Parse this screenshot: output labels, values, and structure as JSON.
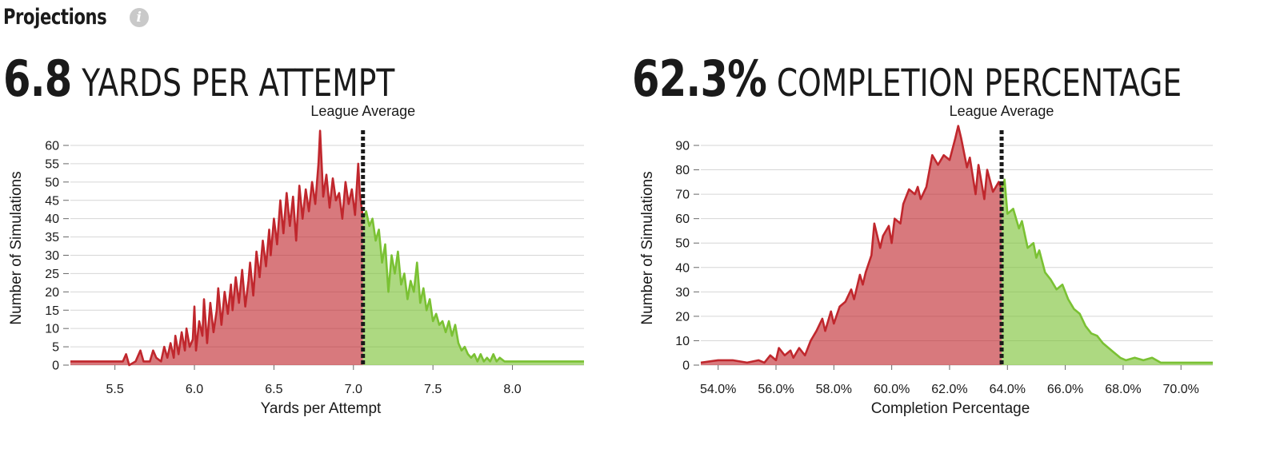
{
  "header": {
    "title": "Projections",
    "info_icon": "info-icon"
  },
  "chart_data": [
    {
      "type": "area",
      "headline_value": "6.8",
      "headline_label": "YARDS PER ATTEMPT",
      "xlabel": "Yards per Attempt",
      "ylabel": "Number of Simulations",
      "annotation": "League Average",
      "league_average": 7.06,
      "xlim": [
        5.22,
        8.45
      ],
      "ylim": [
        0,
        60
      ],
      "x_ticks": [
        5.5,
        6.0,
        6.5,
        7.0,
        7.5,
        8.0
      ],
      "x_tick_labels": [
        "5.5",
        "6.0",
        "6.5",
        "7.0",
        "7.5",
        "8.0"
      ],
      "y_ticks": [
        0,
        5,
        10,
        15,
        20,
        25,
        30,
        35,
        40,
        45,
        50,
        55,
        60
      ],
      "y_tick_labels": [
        "0",
        "5",
        "10",
        "15",
        "20",
        "25",
        "30",
        "35",
        "40",
        "45",
        "50",
        "55",
        "60"
      ],
      "below_color": "#c0272d",
      "above_color": "#7ac133",
      "points": [
        [
          5.22,
          1
        ],
        [
          5.3,
          1
        ],
        [
          5.4,
          1
        ],
        [
          5.5,
          1
        ],
        [
          5.55,
          1
        ],
        [
          5.57,
          3
        ],
        [
          5.59,
          0
        ],
        [
          5.63,
          1
        ],
        [
          5.66,
          4
        ],
        [
          5.68,
          1
        ],
        [
          5.72,
          1
        ],
        [
          5.74,
          4
        ],
        [
          5.76,
          2
        ],
        [
          5.79,
          1
        ],
        [
          5.81,
          5
        ],
        [
          5.83,
          2
        ],
        [
          5.85,
          6
        ],
        [
          5.87,
          2
        ],
        [
          5.88,
          8
        ],
        [
          5.9,
          3
        ],
        [
          5.92,
          9
        ],
        [
          5.94,
          4
        ],
        [
          5.95,
          10
        ],
        [
          5.97,
          5
        ],
        [
          5.99,
          7
        ],
        [
          6.0,
          16
        ],
        [
          6.01,
          4
        ],
        [
          6.03,
          12
        ],
        [
          6.05,
          8
        ],
        [
          6.06,
          18
        ],
        [
          6.08,
          6
        ],
        [
          6.1,
          17
        ],
        [
          6.12,
          9
        ],
        [
          6.14,
          15
        ],
        [
          6.15,
          21
        ],
        [
          6.17,
          11
        ],
        [
          6.19,
          20
        ],
        [
          6.21,
          14
        ],
        [
          6.23,
          22
        ],
        [
          6.24,
          15
        ],
        [
          6.26,
          24
        ],
        [
          6.28,
          17
        ],
        [
          6.3,
          26
        ],
        [
          6.32,
          16
        ],
        [
          6.34,
          23
        ],
        [
          6.35,
          28
        ],
        [
          6.37,
          19
        ],
        [
          6.39,
          31
        ],
        [
          6.41,
          24
        ],
        [
          6.43,
          34
        ],
        [
          6.45,
          27
        ],
        [
          6.47,
          37
        ],
        [
          6.48,
          30
        ],
        [
          6.5,
          40
        ],
        [
          6.52,
          33
        ],
        [
          6.54,
          45
        ],
        [
          6.56,
          36
        ],
        [
          6.58,
          47
        ],
        [
          6.6,
          38
        ],
        [
          6.62,
          46
        ],
        [
          6.64,
          34
        ],
        [
          6.66,
          49
        ],
        [
          6.68,
          40
        ],
        [
          6.7,
          48
        ],
        [
          6.72,
          42
        ],
        [
          6.74,
          50
        ],
        [
          6.76,
          44
        ],
        [
          6.78,
          55
        ],
        [
          6.79,
          64
        ],
        [
          6.81,
          46
        ],
        [
          6.83,
          52
        ],
        [
          6.85,
          43
        ],
        [
          6.87,
          51
        ],
        [
          6.89,
          45
        ],
        [
          6.91,
          47
        ],
        [
          6.93,
          40
        ],
        [
          6.95,
          50
        ],
        [
          6.97,
          44
        ],
        [
          6.99,
          48
        ],
        [
          7.01,
          41
        ],
        [
          7.03,
          55
        ],
        [
          7.04,
          47
        ],
        [
          7.06,
          40
        ],
        [
          7.08,
          42
        ],
        [
          7.1,
          38
        ],
        [
          7.12,
          40
        ],
        [
          7.14,
          34
        ],
        [
          7.16,
          37
        ],
        [
          7.18,
          28
        ],
        [
          7.2,
          33
        ],
        [
          7.22,
          20
        ],
        [
          7.24,
          30
        ],
        [
          7.26,
          25
        ],
        [
          7.28,
          31
        ],
        [
          7.3,
          22
        ],
        [
          7.32,
          25
        ],
        [
          7.34,
          18
        ],
        [
          7.36,
          23
        ],
        [
          7.38,
          20
        ],
        [
          7.4,
          28
        ],
        [
          7.42,
          17
        ],
        [
          7.44,
          21
        ],
        [
          7.46,
          15
        ],
        [
          7.48,
          18
        ],
        [
          7.5,
          12
        ],
        [
          7.52,
          14
        ],
        [
          7.54,
          11
        ],
        [
          7.56,
          12
        ],
        [
          7.58,
          9
        ],
        [
          7.6,
          12
        ],
        [
          7.62,
          8
        ],
        [
          7.64,
          11
        ],
        [
          7.66,
          6
        ],
        [
          7.68,
          4
        ],
        [
          7.7,
          5
        ],
        [
          7.72,
          3
        ],
        [
          7.74,
          2
        ],
        [
          7.76,
          3
        ],
        [
          7.78,
          1
        ],
        [
          7.8,
          3
        ],
        [
          7.82,
          1
        ],
        [
          7.84,
          2
        ],
        [
          7.86,
          1
        ],
        [
          7.88,
          3
        ],
        [
          7.9,
          1
        ],
        [
          7.92,
          2
        ],
        [
          7.95,
          1
        ],
        [
          8.0,
          1
        ],
        [
          8.1,
          1
        ],
        [
          8.2,
          1
        ],
        [
          8.3,
          1
        ],
        [
          8.45,
          1
        ]
      ]
    },
    {
      "type": "area",
      "headline_value": "62.3%",
      "headline_label": "COMPLETION PERCENTAGE",
      "xlabel": "Completion Percentage",
      "ylabel": "Number of Simulations",
      "annotation": "League Average",
      "league_average": 63.8,
      "xlim": [
        53.4,
        71.1
      ],
      "ylim": [
        0,
        90
      ],
      "x_ticks": [
        54,
        56,
        58,
        60,
        62,
        64,
        66,
        68,
        70
      ],
      "x_tick_labels": [
        "54.0%",
        "56.0%",
        "58.0%",
        "60.0%",
        "62.0%",
        "64.0%",
        "66.0%",
        "68.0%",
        "70.0%"
      ],
      "y_ticks": [
        0,
        10,
        20,
        30,
        40,
        50,
        60,
        70,
        80,
        90
      ],
      "y_tick_labels": [
        "0",
        "10",
        "20",
        "30",
        "40",
        "50",
        "60",
        "70",
        "80",
        "90"
      ],
      "below_color": "#c0272d",
      "above_color": "#7ac133",
      "points": [
        [
          53.4,
          1
        ],
        [
          54.0,
          2
        ],
        [
          54.5,
          2
        ],
        [
          55.0,
          1
        ],
        [
          55.4,
          2
        ],
        [
          55.6,
          1
        ],
        [
          55.8,
          4
        ],
        [
          56.0,
          2
        ],
        [
          56.1,
          7
        ],
        [
          56.3,
          4
        ],
        [
          56.5,
          6
        ],
        [
          56.6,
          3
        ],
        [
          56.8,
          7
        ],
        [
          57.0,
          4
        ],
        [
          57.2,
          10
        ],
        [
          57.4,
          14
        ],
        [
          57.6,
          19
        ],
        [
          57.7,
          14
        ],
        [
          57.9,
          22
        ],
        [
          58.0,
          17
        ],
        [
          58.2,
          24
        ],
        [
          58.4,
          26
        ],
        [
          58.6,
          31
        ],
        [
          58.7,
          27
        ],
        [
          58.9,
          37
        ],
        [
          59.0,
          33
        ],
        [
          59.1,
          38
        ],
        [
          59.3,
          45
        ],
        [
          59.4,
          58
        ],
        [
          59.6,
          48
        ],
        [
          59.7,
          53
        ],
        [
          59.9,
          57
        ],
        [
          60.0,
          50
        ],
        [
          60.1,
          60
        ],
        [
          60.3,
          58
        ],
        [
          60.4,
          66
        ],
        [
          60.6,
          72
        ],
        [
          60.8,
          70
        ],
        [
          60.9,
          73
        ],
        [
          61.0,
          68
        ],
        [
          61.2,
          73
        ],
        [
          61.4,
          86
        ],
        [
          61.6,
          82
        ],
        [
          61.8,
          86
        ],
        [
          62.0,
          84
        ],
        [
          62.2,
          93
        ],
        [
          62.3,
          98
        ],
        [
          62.4,
          93
        ],
        [
          62.6,
          81
        ],
        [
          62.7,
          85
        ],
        [
          62.9,
          70
        ],
        [
          63.0,
          82
        ],
        [
          63.2,
          68
        ],
        [
          63.3,
          80
        ],
        [
          63.5,
          71
        ],
        [
          63.7,
          75
        ],
        [
          63.8,
          72
        ],
        [
          63.9,
          76
        ],
        [
          64.0,
          62
        ],
        [
          64.2,
          64
        ],
        [
          64.4,
          56
        ],
        [
          64.5,
          59
        ],
        [
          64.7,
          48
        ],
        [
          64.9,
          50
        ],
        [
          65.0,
          44
        ],
        [
          65.1,
          47
        ],
        [
          65.3,
          38
        ],
        [
          65.5,
          35
        ],
        [
          65.7,
          31
        ],
        [
          65.9,
          33
        ],
        [
          66.1,
          27
        ],
        [
          66.3,
          23
        ],
        [
          66.5,
          21
        ],
        [
          66.7,
          16
        ],
        [
          66.9,
          13
        ],
        [
          67.1,
          12
        ],
        [
          67.3,
          9
        ],
        [
          67.5,
          7
        ],
        [
          67.7,
          5
        ],
        [
          67.9,
          3
        ],
        [
          68.1,
          2
        ],
        [
          68.4,
          3
        ],
        [
          68.7,
          2
        ],
        [
          69.0,
          3
        ],
        [
          69.3,
          1
        ],
        [
          69.6,
          1
        ],
        [
          70.0,
          1
        ],
        [
          70.5,
          1
        ],
        [
          71.1,
          1
        ]
      ]
    }
  ]
}
